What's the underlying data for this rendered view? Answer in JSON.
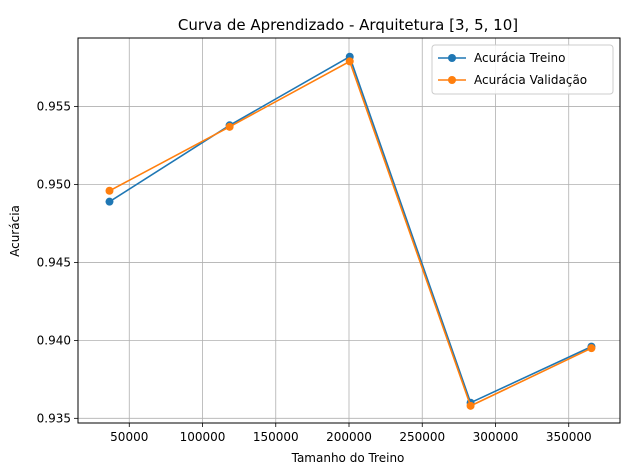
{
  "chart_data": {
    "type": "line",
    "title": "Curva de Aprendizado - Arquitetura [3, 5, 10]",
    "xlabel": "Tamanho do Treino",
    "ylabel": "Acurácia",
    "xlim": [
      15000,
      385000
    ],
    "ylim": [
      0.9347,
      0.9594
    ],
    "xticks": [
      50000,
      100000,
      150000,
      200000,
      250000,
      300000,
      350000
    ],
    "xtick_labels": [
      "50000",
      "100000",
      "150000",
      "200000",
      "250000",
      "300000",
      "350000"
    ],
    "yticks": [
      0.935,
      0.94,
      0.945,
      0.95,
      0.955
    ],
    "ytick_labels": [
      "0.935",
      "0.940",
      "0.945",
      "0.950",
      "0.955"
    ],
    "grid": true,
    "legend_position": "top-right",
    "x": [
      36500,
      118500,
      200500,
      283000,
      365500
    ],
    "series": [
      {
        "name": "Acurácia Treino",
        "color": "#1f77b4",
        "values": [
          0.9489,
          0.9538,
          0.9582,
          0.936,
          0.9396
        ]
      },
      {
        "name": "Acurácia Validação",
        "color": "#ff7f0e",
        "values": [
          0.9496,
          0.9537,
          0.9579,
          0.9358,
          0.9395
        ]
      }
    ]
  }
}
